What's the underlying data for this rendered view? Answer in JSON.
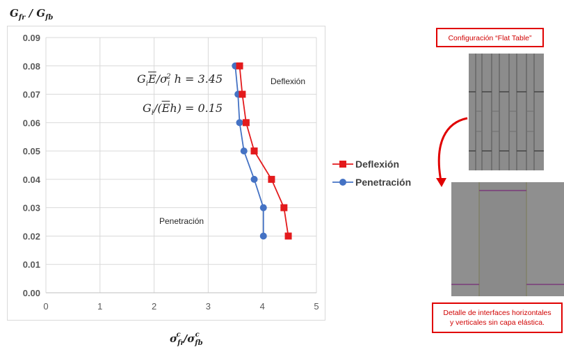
{
  "chart_data": {
    "type": "line",
    "ylabel": "G_fr / G_fb",
    "xlabel": "σ^c_fr / σ^c_fb",
    "xlim": [
      0,
      5
    ],
    "ylim": [
      0,
      0.09
    ],
    "x_ticks": [
      "0",
      "1",
      "2",
      "3",
      "4",
      "5"
    ],
    "y_ticks": [
      "0.00",
      "0.01",
      "0.02",
      "0.03",
      "0.04",
      "0.05",
      "0.06",
      "0.07",
      "0.08",
      "0.09"
    ],
    "grid": true,
    "legend_position": "right",
    "series": [
      {
        "name": "Deflexión",
        "color": "#e31a1c",
        "marker": "square",
        "points": [
          [
            3.58,
            0.08
          ],
          [
            3.63,
            0.07
          ],
          [
            3.7,
            0.06
          ],
          [
            3.85,
            0.05
          ],
          [
            4.17,
            0.04
          ],
          [
            4.4,
            0.03
          ],
          [
            4.48,
            0.02
          ]
        ]
      },
      {
        "name": "Penetración",
        "color": "#4472c4",
        "marker": "circle",
        "points": [
          [
            3.5,
            0.08
          ],
          [
            3.55,
            0.07
          ],
          [
            3.58,
            0.06
          ],
          [
            3.66,
            0.05
          ],
          [
            3.85,
            0.04
          ],
          [
            4.02,
            0.03
          ],
          [
            4.02,
            0.02
          ]
        ]
      }
    ],
    "annotations": {
      "eq1": "G_i Ē / σ_i² h = 3.45",
      "eq2": "G_i / (Ē h) = 0.15",
      "region_deflexion": "Deflexión",
      "region_penetracion": "Penetración"
    }
  },
  "panel": {
    "top_label": "Configuración “Flat Table”",
    "bottom_label_line1": "Detalle de interfaces horizontales",
    "bottom_label_line2": "y verticales sin capa elástica."
  }
}
